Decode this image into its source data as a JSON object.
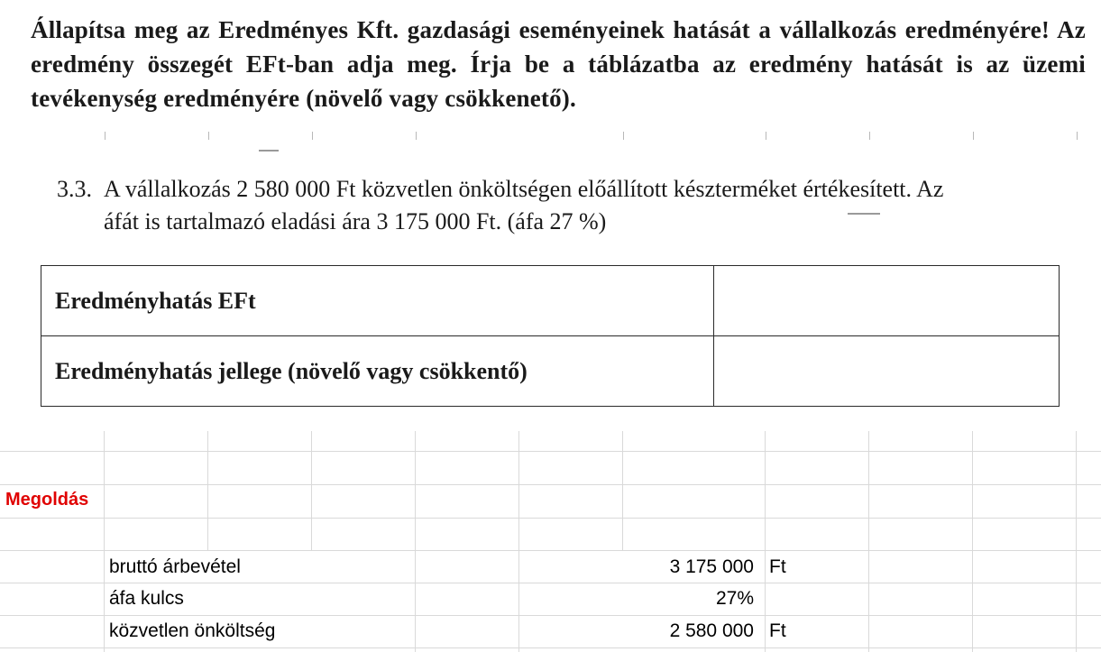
{
  "task_text": "Állapítsa meg az Eredményes Kft. gazdasági eseményeinek hatását a vállalkozás eredményére! Az eredmény összegét EFt-ban adja meg. Írja be a táblázatba az eredmény hatását is az üzemi tevékenység eredményére (növelő vagy csökkenető).",
  "subtask": {
    "number": "3.3.",
    "line1": "A vállalkozás 2 580 000 Ft közvetlen önköltségen előállított készterméket értékesített. Az",
    "line2": "áfát is tartalmazó eladási ára 3 175 000 Ft. (áfa 27 %)"
  },
  "result_table": {
    "row1_label": "Eredményhatás EFt",
    "row1_value": "",
    "row2_label": "Eredményhatás jellege (növelő vagy csökkentő)",
    "row2_value": ""
  },
  "solution": {
    "heading": "Megoldás",
    "heading_color": "#e00000",
    "rows": [
      {
        "label": "bruttó árbevétel",
        "amount": "3 175 000",
        "unit": "Ft"
      },
      {
        "label": "áfa kulcs",
        "amount": "27%",
        "unit": ""
      },
      {
        "label": "közvetlen önköltség",
        "amount": "2 580 000",
        "unit": "Ft"
      }
    ]
  }
}
